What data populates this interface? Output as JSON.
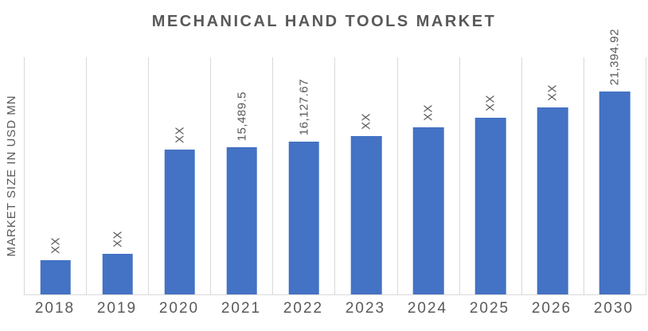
{
  "colors": {
    "bar": "#4472C4",
    "gridline": "#D9D9D9",
    "text": "#595959"
  },
  "chart_data": {
    "type": "bar",
    "title": "MECHANICAL HAND TOOLS MARKET",
    "ylabel": "MARKET SIZE IN USD MN",
    "xlabel": "",
    "categories": [
      "2018",
      "2019",
      "2020",
      "2021",
      "2022",
      "2023",
      "2024",
      "2025",
      "2026",
      "2030"
    ],
    "series": [
      {
        "name": "Market Size",
        "labels": [
          "XX",
          "XX",
          "XX",
          "15,489.5",
          "16,127.67",
          "XX",
          "XX",
          "XX",
          "XX",
          "21,394.92"
        ],
        "values": [
          3600,
          4300,
          15300,
          15489.5,
          16127.67,
          16700,
          17600,
          18600,
          19700,
          21394.92
        ]
      }
    ],
    "ylim": [
      0,
      25000
    ],
    "grid": "vertical-category-gridlines",
    "legend": "none"
  }
}
